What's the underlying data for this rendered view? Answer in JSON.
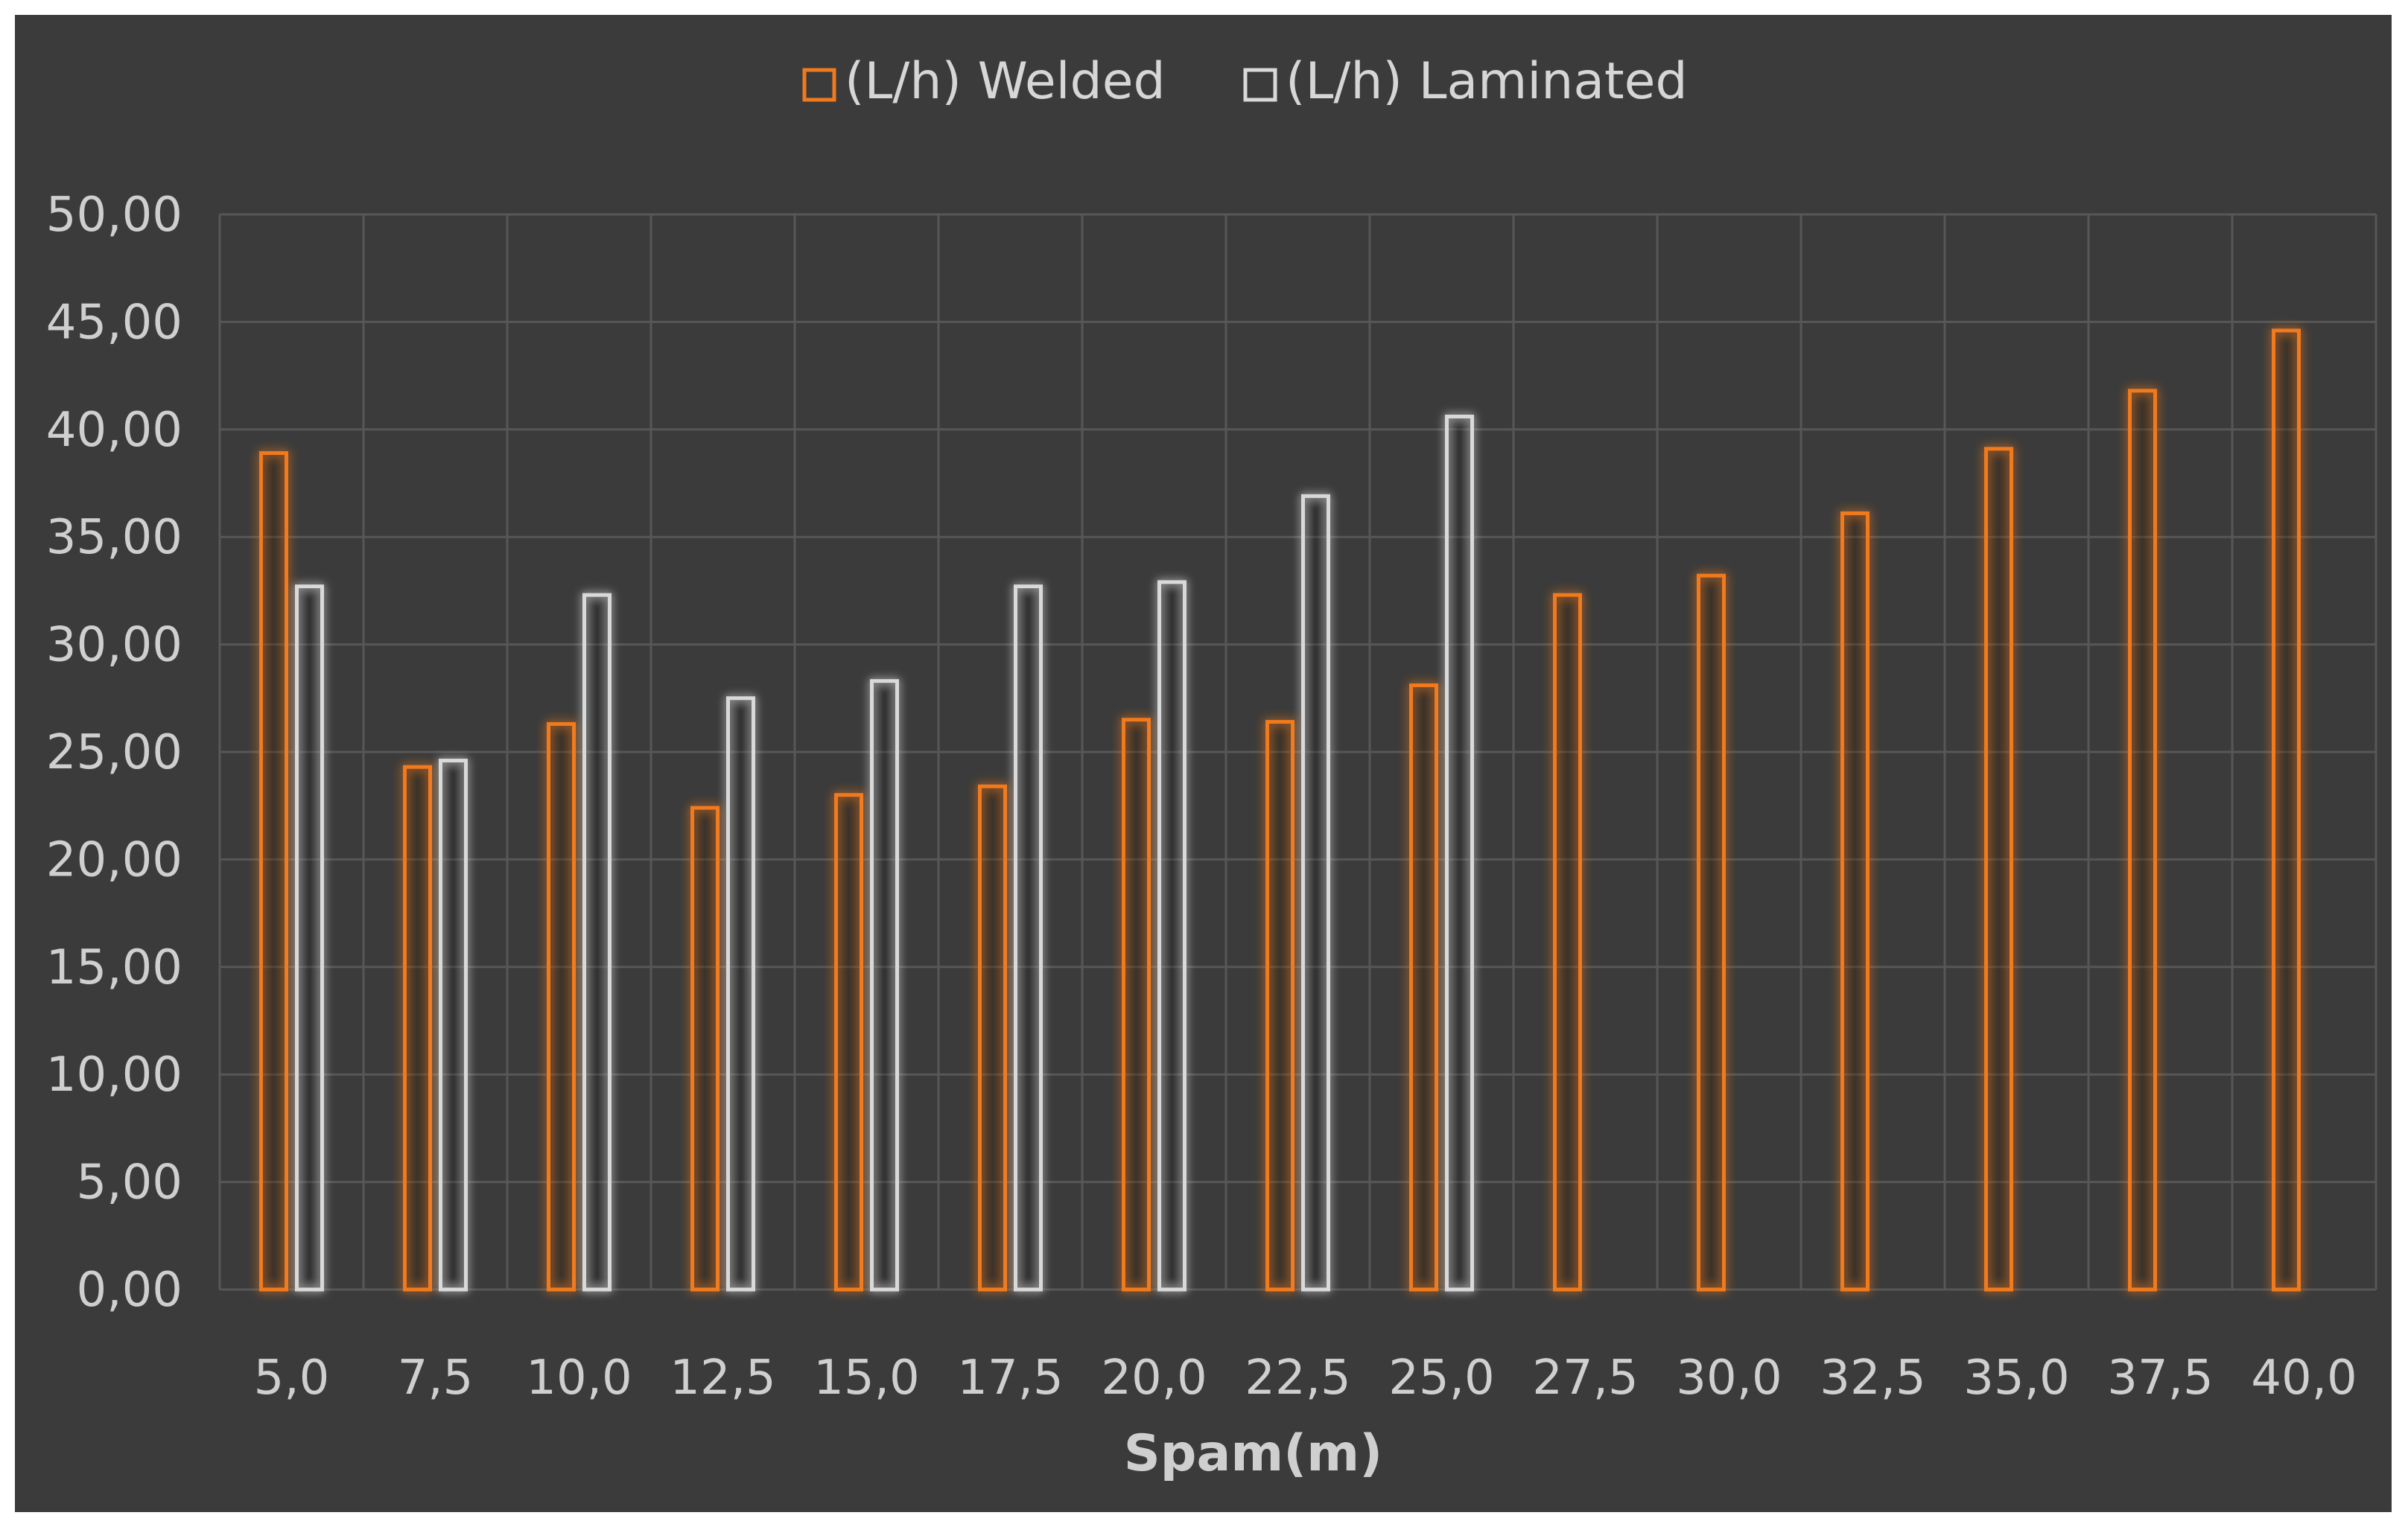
{
  "chart_data": {
    "type": "bar",
    "title": "",
    "xlabel": "Spam(m)",
    "ylabel": "",
    "ylim": [
      0,
      50
    ],
    "y_ticks": [
      "0,00",
      "5,00",
      "10,00",
      "15,00",
      "20,00",
      "25,00",
      "30,00",
      "35,00",
      "40,00",
      "45,00",
      "50,00"
    ],
    "grid": true,
    "legend_position": "top",
    "categories": [
      "5,0",
      "7,5",
      "10,0",
      "12,5",
      "15,0",
      "17,5",
      "20,0",
      "22,5",
      "25,0",
      "27,5",
      "30,0",
      "32,5",
      "35,0",
      "37,5",
      "40,0"
    ],
    "series": [
      {
        "name": "(L/h) Welded",
        "color": "#f07a1e",
        "values": [
          38.9,
          24.3,
          26.3,
          22.4,
          23.0,
          23.4,
          26.5,
          26.4,
          28.1,
          32.3,
          33.2,
          36.1,
          39.1,
          41.8,
          44.6
        ]
      },
      {
        "name": "(L/h) Laminated",
        "color": "#d9d9d9",
        "values": [
          32.7,
          24.6,
          32.3,
          27.5,
          28.3,
          32.7,
          32.9,
          36.9,
          40.6,
          null,
          null,
          null,
          null,
          null,
          null
        ]
      }
    ],
    "colors": {
      "background": "#3b3b3b",
      "grid": "#575757",
      "text": "#cfcfcf"
    }
  }
}
